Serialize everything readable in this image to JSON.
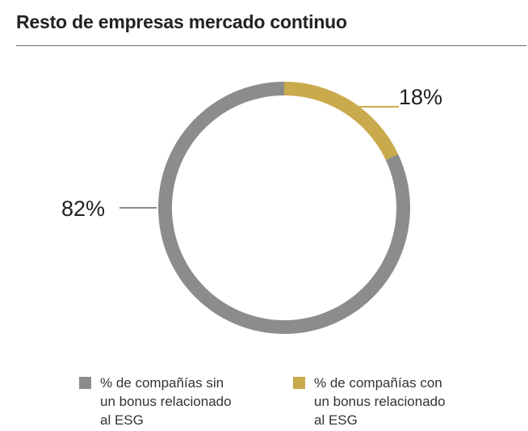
{
  "chart_data": {
    "type": "pie",
    "title": "Resto de empresas mercado continuo",
    "slices": [
      {
        "label": "% de compañías sin\nun bonus relacionado\nal ESG",
        "value": 82,
        "display": "82%",
        "color": "#8c8c8c"
      },
      {
        "label": "% de compañías con\nun bonus relacionado\nal ESG",
        "value": 18,
        "display": "18%",
        "color": "#c9aa4d"
      }
    ],
    "donut": true,
    "legend_position": "bottom"
  }
}
